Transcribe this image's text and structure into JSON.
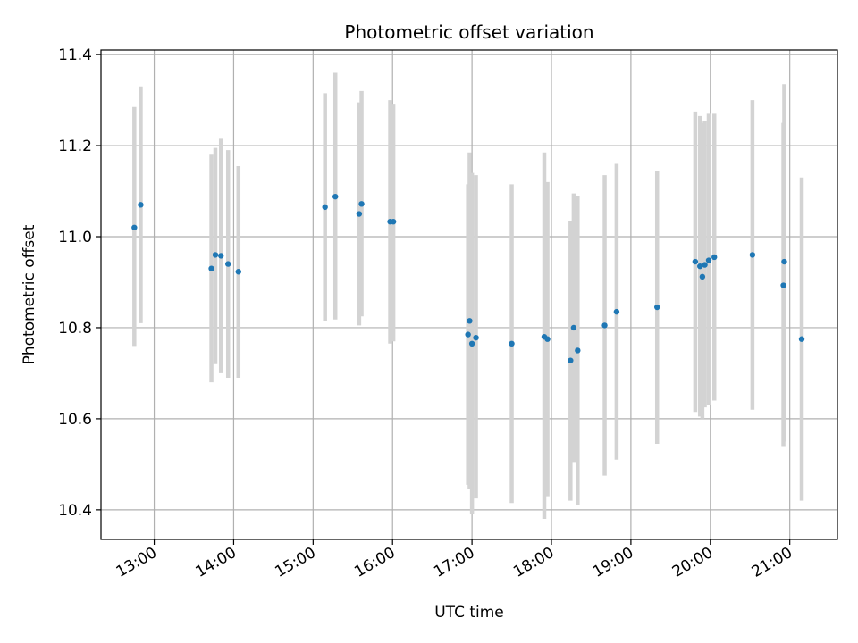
{
  "chart_data": {
    "type": "scatter",
    "title": "Photometric offset variation",
    "xlabel": "UTC time",
    "ylabel": "Photometric offset",
    "x_unit": "hours UTC",
    "xlim": [
      12.33,
      21.6
    ],
    "ylim": [
      10.335,
      11.41
    ],
    "x_ticks": [
      {
        "value": 13,
        "label": "13:00"
      },
      {
        "value": 14,
        "label": "14:00"
      },
      {
        "value": 15,
        "label": "15:00"
      },
      {
        "value": 16,
        "label": "16:00"
      },
      {
        "value": 17,
        "label": "17:00"
      },
      {
        "value": 18,
        "label": "18:00"
      },
      {
        "value": 19,
        "label": "19:00"
      },
      {
        "value": 20,
        "label": "20:00"
      },
      {
        "value": 21,
        "label": "21:00"
      }
    ],
    "y_ticks": [
      {
        "value": 10.4,
        "label": "10.4"
      },
      {
        "value": 10.6,
        "label": "10.6"
      },
      {
        "value": 10.8,
        "label": "10.8"
      },
      {
        "value": 11.0,
        "label": "11.0"
      },
      {
        "value": 11.2,
        "label": "11.2"
      },
      {
        "value": 11.4,
        "label": "11.4"
      }
    ],
    "grid": true,
    "marker_color": "#1f77b4",
    "errorbar_color": "#d3d3d3",
    "points": [
      {
        "x": 12.75,
        "y": 11.02,
        "low": 10.76,
        "high": 11.285
      },
      {
        "x": 12.83,
        "y": 11.07,
        "low": 10.81,
        "high": 11.33
      },
      {
        "x": 13.72,
        "y": 10.93,
        "low": 10.68,
        "high": 11.18
      },
      {
        "x": 13.77,
        "y": 10.96,
        "low": 10.72,
        "high": 11.195
      },
      {
        "x": 13.84,
        "y": 10.958,
        "low": 10.7,
        "high": 11.215
      },
      {
        "x": 13.93,
        "y": 10.94,
        "low": 10.69,
        "high": 11.19
      },
      {
        "x": 14.06,
        "y": 10.923,
        "low": 10.69,
        "high": 11.155
      },
      {
        "x": 15.15,
        "y": 11.065,
        "low": 10.815,
        "high": 11.315
      },
      {
        "x": 15.28,
        "y": 11.088,
        "low": 10.818,
        "high": 11.36
      },
      {
        "x": 15.58,
        "y": 11.05,
        "low": 10.805,
        "high": 11.295
      },
      {
        "x": 15.61,
        "y": 11.072,
        "low": 10.825,
        "high": 11.32
      },
      {
        "x": 15.97,
        "y": 11.033,
        "low": 10.765,
        "high": 11.3
      },
      {
        "x": 16.01,
        "y": 11.033,
        "low": 10.77,
        "high": 11.29
      },
      {
        "x": 16.95,
        "y": 10.785,
        "low": 10.455,
        "high": 11.115
      },
      {
        "x": 16.97,
        "y": 10.815,
        "low": 10.445,
        "high": 11.185
      },
      {
        "x": 17.0,
        "y": 10.765,
        "low": 10.39,
        "high": 11.14
      },
      {
        "x": 17.05,
        "y": 10.778,
        "low": 10.425,
        "high": 11.135
      },
      {
        "x": 17.5,
        "y": 10.765,
        "low": 10.415,
        "high": 11.115
      },
      {
        "x": 17.91,
        "y": 10.78,
        "low": 10.38,
        "high": 11.185
      },
      {
        "x": 17.95,
        "y": 10.775,
        "low": 10.43,
        "high": 11.12
      },
      {
        "x": 18.24,
        "y": 10.728,
        "low": 10.42,
        "high": 11.035
      },
      {
        "x": 18.28,
        "y": 10.8,
        "low": 10.505,
        "high": 11.095
      },
      {
        "x": 18.33,
        "y": 10.75,
        "low": 10.41,
        "high": 11.09
      },
      {
        "x": 18.67,
        "y": 10.805,
        "low": 10.475,
        "high": 11.135
      },
      {
        "x": 18.82,
        "y": 10.835,
        "low": 10.51,
        "high": 11.16
      },
      {
        "x": 19.33,
        "y": 10.845,
        "low": 10.545,
        "high": 11.145
      },
      {
        "x": 19.81,
        "y": 10.945,
        "low": 10.615,
        "high": 11.275
      },
      {
        "x": 19.87,
        "y": 10.935,
        "low": 10.605,
        "high": 11.265
      },
      {
        "x": 19.9,
        "y": 10.912,
        "low": 10.6,
        "high": 11.25
      },
      {
        "x": 19.93,
        "y": 10.938,
        "low": 10.625,
        "high": 11.255
      },
      {
        "x": 19.98,
        "y": 10.948,
        "low": 10.63,
        "high": 11.27
      },
      {
        "x": 20.05,
        "y": 10.955,
        "low": 10.64,
        "high": 11.27
      },
      {
        "x": 20.53,
        "y": 10.96,
        "low": 10.62,
        "high": 11.3
      },
      {
        "x": 20.92,
        "y": 10.893,
        "low": 10.54,
        "high": 11.25
      },
      {
        "x": 20.93,
        "y": 10.945,
        "low": 10.55,
        "high": 11.335
      },
      {
        "x": 21.15,
        "y": 10.775,
        "low": 10.42,
        "high": 11.13
      }
    ]
  }
}
